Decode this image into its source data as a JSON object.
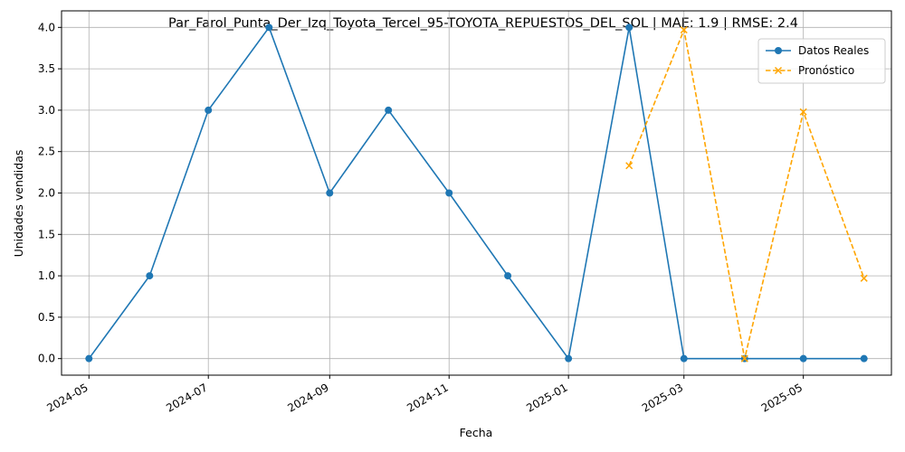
{
  "chart_data": {
    "type": "line",
    "title": "Par_Farol_Punta_Der_Izq_Toyota_Tercel_95-TOYOTA_REPUESTOS_DEL_SOL | MAE: 1.9 | RMSE: 2.4",
    "xlabel": "Fecha",
    "ylabel": "Unidades vendidas",
    "ylim": [
      -0.2,
      4.2
    ],
    "y_ticks": [
      "0.0",
      "0.5",
      "1.0",
      "1.5",
      "2.0",
      "2.5",
      "3.0",
      "3.5",
      "4.0"
    ],
    "x_ticks": [
      "2024-05",
      "2024-07",
      "2024-09",
      "2024-11",
      "2025-01",
      "2025-03",
      "2025-05"
    ],
    "grid": true,
    "legend_position": "top-right",
    "series": [
      {
        "name": "Datos Reales",
        "color": "#1f77b4",
        "style": "solid",
        "marker": "circle",
        "x": [
          "2024-05-01",
          "2024-06-01",
          "2024-07-01",
          "2024-08-01",
          "2024-09-01",
          "2024-10-01",
          "2024-11-01",
          "2024-12-01",
          "2025-01-01",
          "2025-02-01",
          "2025-03-01",
          "2025-04-01",
          "2025-05-01",
          "2025-06-01"
        ],
        "values": [
          0,
          1,
          3,
          4,
          2,
          3,
          2,
          1,
          0,
          4,
          0,
          0,
          0,
          0
        ]
      },
      {
        "name": "Pronóstico",
        "color": "#ffa500",
        "style": "dashed",
        "marker": "x",
        "x": [
          "2025-02-01",
          "2025-03-01",
          "2025-04-01",
          "2025-05-01",
          "2025-06-01"
        ],
        "values": [
          2.33,
          3.97,
          0.0,
          2.98,
          0.97
        ]
      }
    ]
  }
}
